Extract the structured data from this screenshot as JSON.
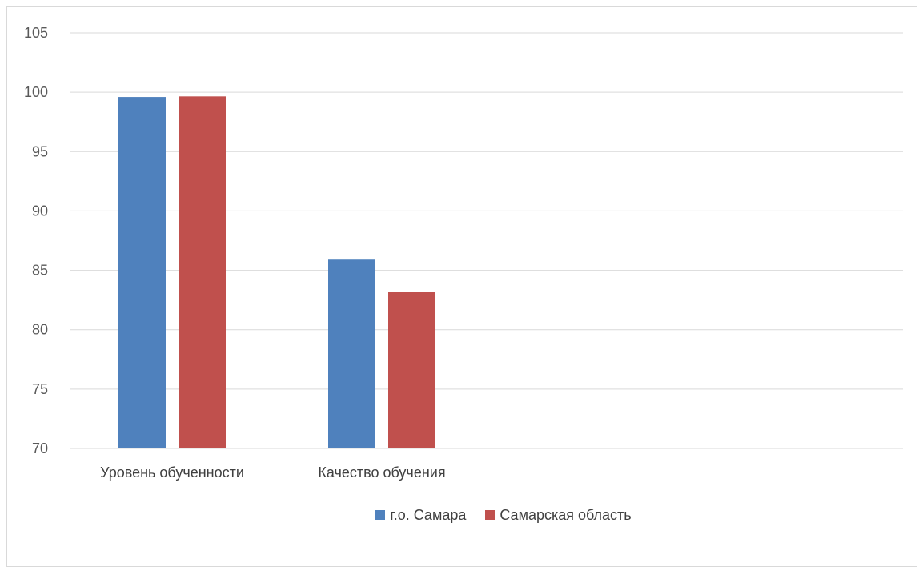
{
  "chart_data": {
    "type": "bar",
    "categories": [
      "Уровень обученности",
      "Качество обучения"
    ],
    "series": [
      {
        "name": "г.о. Самара",
        "values": [
          99.6,
          85.9
        ],
        "color": "#4f81bd"
      },
      {
        "name": "Самарская область",
        "values": [
          99.65,
          83.2
        ],
        "color": "#c0504d"
      }
    ],
    "ylim": [
      70,
      105
    ],
    "yticks": [
      70,
      75,
      80,
      85,
      90,
      95,
      100,
      105
    ],
    "grid": true,
    "legend_position": "bottom"
  }
}
